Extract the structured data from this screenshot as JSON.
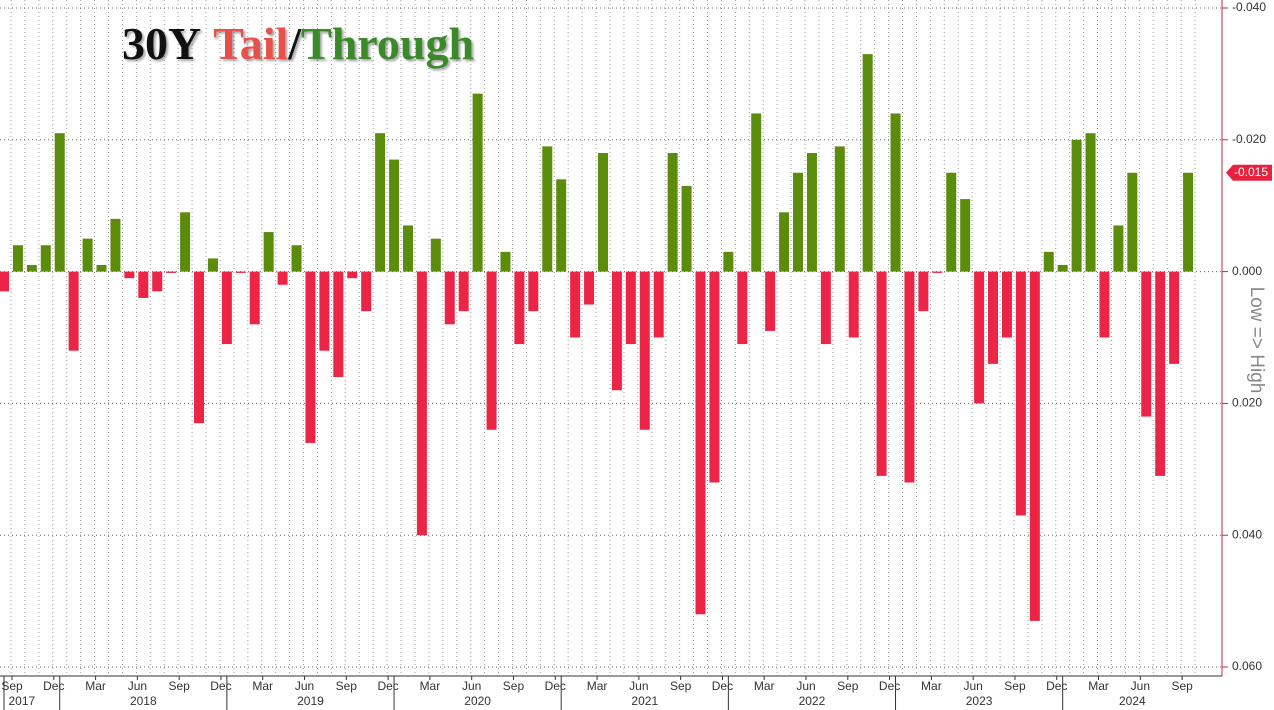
{
  "chart_data": {
    "type": "bar",
    "title_parts": [
      {
        "text": "30Y",
        "color": "#111111"
      },
      {
        "text": "Tail",
        "color": "#e8504a"
      },
      {
        "text": "/",
        "color": "#111111"
      },
      {
        "text": "Through",
        "color": "#3a8a2a"
      }
    ],
    "y_axis_label": "Low => High",
    "categories": [
      "Sep",
      null,
      null,
      "Dec",
      null,
      null,
      "Mar",
      null,
      null,
      "Jun",
      null,
      null,
      "Sep",
      null,
      null,
      "Dec",
      null,
      null,
      "Mar",
      null,
      null,
      "Jun",
      null,
      null,
      "Sep",
      null,
      null,
      "Dec",
      null,
      null,
      "Mar",
      null,
      null,
      "Jun",
      null,
      null,
      "Sep",
      null,
      null,
      "Dec",
      null,
      null,
      "Mar",
      null,
      null,
      "Jun",
      null,
      null,
      "Sep",
      null,
      null,
      "Dec",
      null,
      null,
      "Mar",
      null,
      null,
      "Jun",
      null,
      null,
      "Sep",
      null,
      null,
      "Dec",
      null,
      null,
      "Mar",
      null,
      null,
      "Jun",
      null,
      null,
      "Sep",
      null,
      null,
      "Dec",
      null,
      null,
      "Mar",
      null,
      null,
      "Jun",
      null,
      null,
      "Sep",
      null
    ],
    "year_groups": [
      {
        "label": "2017",
        "count": 4
      },
      {
        "label": "2018",
        "count": 12
      },
      {
        "label": "2019",
        "count": 12
      },
      {
        "label": "2020",
        "count": 12
      },
      {
        "label": "2021",
        "count": 12
      },
      {
        "label": "2022",
        "count": 12
      },
      {
        "label": "2023",
        "count": 12
      },
      {
        "label": "2024",
        "count": 10
      }
    ],
    "values": [
      0.003,
      -0.004,
      -0.001,
      -0.004,
      -0.021,
      0.012,
      -0.005,
      -0.001,
      -0.008,
      0.001,
      0.004,
      0.003,
      0.0002,
      -0.009,
      0.023,
      -0.002,
      0.011,
      0.0002,
      0.008,
      -0.006,
      0.002,
      -0.004,
      0.026,
      0.012,
      0.016,
      0.001,
      0.006,
      -0.021,
      -0.017,
      -0.007,
      0.04,
      -0.005,
      0.008,
      0.006,
      -0.027,
      0.024,
      -0.003,
      0.011,
      0.006,
      -0.019,
      -0.014,
      0.01,
      0.005,
      -0.018,
      0.018,
      0.011,
      0.024,
      0.01,
      -0.018,
      -0.013,
      0.052,
      0.032,
      -0.003,
      0.011,
      -0.024,
      0.009,
      -0.009,
      -0.015,
      -0.018,
      0.011,
      -0.019,
      0.01,
      -0.033,
      0.031,
      -0.024,
      0.032,
      0.006,
      0.0002,
      -0.015,
      -0.011,
      0.02,
      0.014,
      0.01,
      0.037,
      0.053,
      -0.003,
      -0.001,
      -0.02,
      -0.021,
      0.01,
      -0.007,
      -0.015,
      0.022,
      0.031,
      0.014,
      -0.015
    ],
    "positive_color": "#ec2547",
    "negative_color": "#5b8c0c",
    "ylim": [
      -0.04,
      0.06
    ],
    "y_inverted": true,
    "yticks": [
      {
        "value": -0.04,
        "label": "-0.040"
      },
      {
        "value": -0.02,
        "label": "-0.020"
      },
      {
        "value": 0,
        "label": "0.000"
      },
      {
        "value": 0.02,
        "label": "0.020"
      },
      {
        "value": 0.04,
        "label": "0.040"
      },
      {
        "value": 0.06,
        "label": "0.060"
      }
    ],
    "last_value_label": "-0.015",
    "grid": true
  }
}
